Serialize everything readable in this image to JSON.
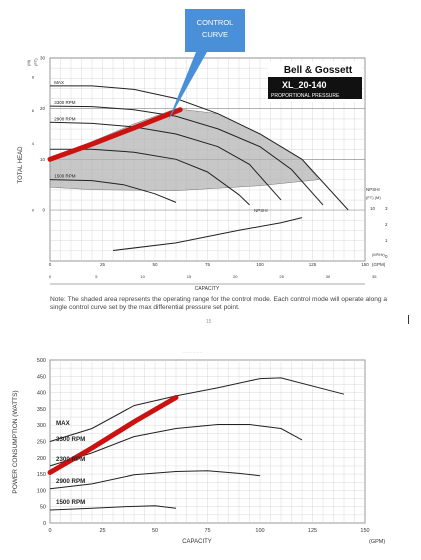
{
  "callout": {
    "line1": "CONTROL",
    "line2": "CURVE",
    "color": "#4a90d9"
  },
  "brand": "Bell & Gossett",
  "model": "XL_20-140",
  "mode": "PROPORTIONAL PRESSURE",
  "note": "Note: The shaded area represents the operating range for the control mode. Each control mode will operate along a single control curve set by the max differential pressure set point.",
  "page_number": "15",
  "faint_text": "~~~~~~",
  "colors": {
    "control_line": "#cc1111",
    "shade": "#b4b4b4",
    "grid": "#cfcfcf",
    "curve": "#222222"
  },
  "chart_data": [
    {
      "type": "line",
      "title": "",
      "xlabel": "CAPACITY",
      "x_unit": "(GPM)",
      "x_unit_m3": "(M³/Hr)",
      "ylabel": "TOTAL HEAD",
      "y_unit_ft": "(FT)",
      "y_unit_m": "(M)",
      "xlim": [
        0,
        150
      ],
      "ylim": [
        0,
        30
      ],
      "x_ticks": [
        "0",
        "25",
        "50",
        "75",
        "100",
        "125",
        "150"
      ],
      "m3_ticks": [
        "0",
        "5",
        "10",
        "15",
        "20",
        "25",
        "30",
        "35"
      ],
      "y_ticks_ft": [
        "0",
        "10",
        "20",
        "30"
      ],
      "y_ticks_m": [
        "0",
        "4",
        "6",
        "8"
      ],
      "npsh_label": "NPSHr",
      "npsh_unit": "(FT)  (M)",
      "npsh_ticks": [
        "10",
        "3",
        "2",
        "1",
        "0"
      ],
      "series": [
        {
          "name": "MAX",
          "points": [
            [
              0,
              24.5
            ],
            [
              20,
              24.5
            ],
            [
              40,
              23.8
            ],
            [
              60,
              22
            ],
            [
              80,
              19
            ],
            [
              100,
              15
            ],
            [
              120,
              10
            ],
            [
              142,
              0
            ]
          ]
        },
        {
          "name": "3300 RPM",
          "points": [
            [
              0,
              20.5
            ],
            [
              20,
              20.4
            ],
            [
              40,
              19.8
            ],
            [
              60,
              18.5
            ],
            [
              80,
              16
            ],
            [
              100,
              12.5
            ],
            [
              115,
              8
            ],
            [
              130,
              1
            ]
          ]
        },
        {
          "name": "2900 RPM",
          "points": [
            [
              0,
              17.3
            ],
            [
              20,
              17.1
            ],
            [
              40,
              16.4
            ],
            [
              60,
              15
            ],
            [
              80,
              12.5
            ],
            [
              95,
              9
            ],
            [
              110,
              2
            ]
          ]
        },
        {
          "name": "",
          "points": [
            [
              0,
              12
            ],
            [
              20,
              12
            ],
            [
              40,
              11.4
            ],
            [
              60,
              10
            ],
            [
              75,
              7.5
            ],
            [
              90,
              3
            ],
            [
              95,
              1
            ]
          ]
        },
        {
          "name": "1500 RPM",
          "points": [
            [
              0,
              6
            ],
            [
              20,
              5.8
            ],
            [
              35,
              5
            ],
            [
              50,
              3.2
            ],
            [
              60,
              1.5
            ]
          ]
        }
      ],
      "npshr_curve": [
        [
          30,
          -8
        ],
        [
          60,
          -6.5
        ],
        [
          90,
          -4
        ],
        [
          110,
          -2.5
        ],
        [
          120,
          -1.5
        ]
      ],
      "operating_region": [
        [
          0,
          10
        ],
        [
          40,
          17
        ],
        [
          60,
          20
        ],
        [
          80,
          19
        ],
        [
          100,
          15
        ],
        [
          120,
          10
        ],
        [
          128,
          6
        ],
        [
          100,
          4.8
        ],
        [
          60,
          3.8
        ],
        [
          20,
          4
        ],
        [
          0,
          4.5
        ]
      ],
      "control_curve": [
        [
          0,
          10
        ],
        [
          20,
          13
        ],
        [
          40,
          16.2
        ],
        [
          62,
          19.8
        ]
      ]
    },
    {
      "type": "line",
      "title": "",
      "xlabel": "CAPACITY",
      "x_unit": "(GPM)",
      "ylabel": "POWER CONSUMPTION (WATTS)",
      "xlim": [
        0,
        150
      ],
      "ylim": [
        0,
        500
      ],
      "x_ticks": [
        "0",
        "25",
        "50",
        "75",
        "100",
        "125",
        "150"
      ],
      "y_ticks": [
        "0",
        "50",
        "100",
        "150",
        "200",
        "250",
        "300",
        "350",
        "400",
        "450",
        "500"
      ],
      "series": [
        {
          "name": "MAX",
          "points": [
            [
              0,
              250
            ],
            [
              20,
              290
            ],
            [
              40,
              360
            ],
            [
              60,
              390
            ],
            [
              80,
              415
            ],
            [
              100,
              443
            ],
            [
              110,
              445
            ],
            [
              140,
              395
            ]
          ]
        },
        {
          "name": "3300 RPM",
          "points": [
            [
              0,
              175
            ],
            [
              20,
              215
            ],
            [
              40,
              265
            ],
            [
              60,
              290
            ],
            [
              80,
              302
            ],
            [
              95,
              302
            ],
            [
              110,
              290
            ],
            [
              120,
              255
            ]
          ]
        },
        {
          "name": "2900 RPM",
          "points": [
            [
              0,
              105
            ],
            [
              20,
              120
            ],
            [
              40,
              148
            ],
            [
              60,
              158
            ],
            [
              75,
              160
            ],
            [
              90,
              152
            ],
            [
              100,
              145
            ]
          ]
        },
        {
          "name": "1500 RPM",
          "points": [
            [
              0,
              40
            ],
            [
              20,
              45
            ],
            [
              35,
              50
            ],
            [
              50,
              53
            ],
            [
              60,
              45
            ]
          ]
        }
      ],
      "label_2300": "2300 RPM",
      "control_curve": [
        [
          0,
          155
        ],
        [
          20,
          230
        ],
        [
          40,
          310
        ],
        [
          60,
          385
        ]
      ]
    }
  ]
}
